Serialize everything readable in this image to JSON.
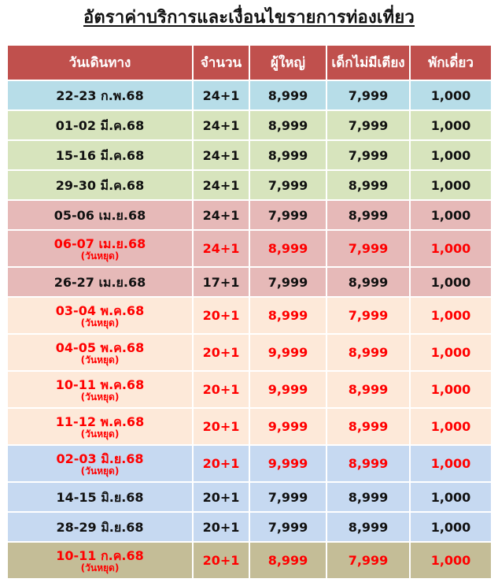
{
  "title": "อัตราค่าบริการและเงื่อนไขรายการท่องเที่ยว",
  "headers": {
    "date": "วันเดินทาง",
    "seats": "จำนวน",
    "adult": "ผู้ใหญ่",
    "child_no_bed": "เด็กไม่มีเตียง",
    "single_supplement": "พักเดี่ยว"
  },
  "rows": [
    {
      "date": "22-23 ก.พ.68",
      "note": "",
      "seats": "24+1",
      "adult": "8,999",
      "child": "7,999",
      "single": "1,000",
      "color": "blue",
      "holiday": false
    },
    {
      "date": "01-02 มี.ค.68",
      "note": "",
      "seats": "24+1",
      "adult": "8,999",
      "child": "7,999",
      "single": "1,000",
      "color": "green",
      "holiday": false
    },
    {
      "date": "15-16 มี.ค.68",
      "note": "",
      "seats": "24+1",
      "adult": "8,999",
      "child": "7,999",
      "single": "1,000",
      "color": "green",
      "holiday": false
    },
    {
      "date": "29-30 มี.ค.68",
      "note": "",
      "seats": "24+1",
      "adult": "7,999",
      "child": "8,999",
      "single": "1,000",
      "color": "green",
      "holiday": false
    },
    {
      "date": "05-06 เม.ย.68",
      "note": "",
      "seats": "24+1",
      "adult": "7,999",
      "child": "8,999",
      "single": "1,000",
      "color": "pink",
      "holiday": false
    },
    {
      "date": "06-07 เม.ย.68",
      "note": "(วันหยุด)",
      "seats": "24+1",
      "adult": "8,999",
      "child": "7,999",
      "single": "1,000",
      "color": "pink",
      "holiday": true
    },
    {
      "date": "26-27 เม.ย.68",
      "note": "",
      "seats": "17+1",
      "adult": "7,999",
      "child": "8,999",
      "single": "1,000",
      "color": "pink",
      "holiday": false
    },
    {
      "date": "03-04 พ.ค.68",
      "note": "(วันหยุด)",
      "seats": "20+1",
      "adult": "8,999",
      "child": "7,999",
      "single": "1,000",
      "color": "peach",
      "holiday": true
    },
    {
      "date": "04-05 พ.ค.68",
      "note": "(วันหยุด)",
      "seats": "20+1",
      "adult": "9,999",
      "child": "8,999",
      "single": "1,000",
      "color": "peach",
      "holiday": true
    },
    {
      "date": "10-11 พ.ค.68",
      "note": "(วันหยุด)",
      "seats": "20+1",
      "adult": "9,999",
      "child": "8,999",
      "single": "1,000",
      "color": "peach",
      "holiday": true
    },
    {
      "date": "11-12 พ.ค.68",
      "note": "(วันหยุด)",
      "seats": "20+1",
      "adult": "9,999",
      "child": "8,999",
      "single": "1,000",
      "color": "peach",
      "holiday": true
    },
    {
      "date": "02-03 มิ.ย.68",
      "note": "(วันหยุด)",
      "seats": "20+1",
      "adult": "9,999",
      "child": "8,999",
      "single": "1,000",
      "color": "lblue",
      "holiday": true
    },
    {
      "date": "14-15 มิ.ย.68",
      "note": "",
      "seats": "20+1",
      "adult": "7,999",
      "child": "8,999",
      "single": "1,000",
      "color": "lblue",
      "holiday": false
    },
    {
      "date": "28-29 มิ.ย.68",
      "note": "",
      "seats": "20+1",
      "adult": "7,999",
      "child": "8,999",
      "single": "1,000",
      "color": "lblue",
      "holiday": false
    },
    {
      "date": "10-11 ก.ค.68",
      "note": "(วันหยุด)",
      "seats": "20+1",
      "adult": "8,999",
      "child": "7,999",
      "single": "1,000",
      "color": "tan",
      "holiday": true
    }
  ],
  "colors": {
    "header": "#c0504d",
    "blue": "#b7dde8",
    "green": "#d7e4bd",
    "pink": "#e6b9b8",
    "peach": "#fde9d9",
    "lblue": "#c6d9f1",
    "tan": "#c4bd97",
    "holiday_text": "#ff0000"
  }
}
